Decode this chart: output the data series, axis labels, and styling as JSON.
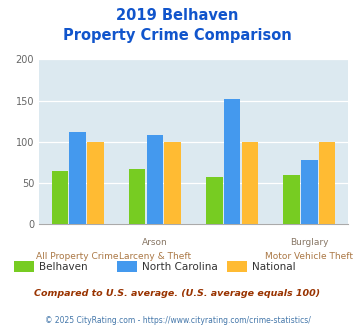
{
  "title_line1": "2019 Belhaven",
  "title_line2": "Property Crime Comparison",
  "series": {
    "Belhaven": [
      65,
      67,
      58,
      60
    ],
    "North Carolina": [
      112,
      108,
      152,
      78
    ],
    "National": [
      100,
      100,
      100,
      100
    ]
  },
  "colors": {
    "Belhaven": "#77cc22",
    "North Carolina": "#4499ee",
    "National": "#ffbb33"
  },
  "ylim": [
    0,
    200
  ],
  "yticks": [
    0,
    50,
    100,
    150,
    200
  ],
  "title_color": "#1155cc",
  "background_color": "#dce9f0",
  "fig_bg_color": "#ffffff",
  "footnote1": "Compared to U.S. average. (U.S. average equals 100)",
  "footnote2": "© 2025 CityRating.com - https://www.cityrating.com/crime-statistics/",
  "footnote1_color": "#993300",
  "footnote2_color": "#4477aa",
  "legend_labels": [
    "Belhaven",
    "North Carolina",
    "National"
  ],
  "xlabel_top": [
    "",
    "Arson",
    "",
    "Burglary"
  ],
  "xlabel_bottom": [
    "All Property Crime",
    "Larceny & Theft",
    "",
    "Motor Vehicle Theft"
  ],
  "xlabel_color_top": "#887755",
  "xlabel_color_bottom": "#aa7744"
}
